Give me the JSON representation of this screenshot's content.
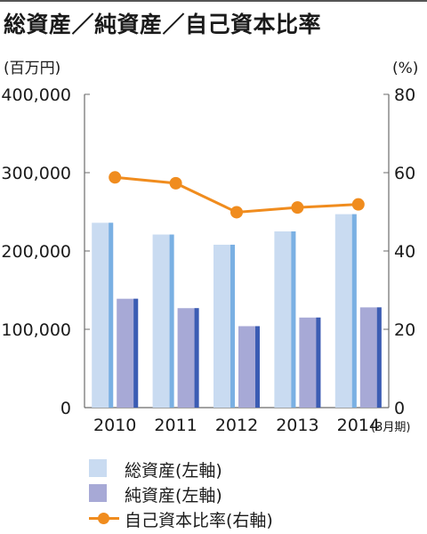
{
  "title": "総資産／純資産／自己資本比率",
  "chart_data": {
    "type": "bar",
    "categories": [
      "2010",
      "2011",
      "2012",
      "2013",
      "2014"
    ],
    "x_unit_note": "(3月期)",
    "left_axis": {
      "unit": "(百万円)",
      "ylim": [
        0,
        400000
      ],
      "ticks": [
        "0",
        "100,000",
        "200,000",
        "300,000",
        "400,000"
      ]
    },
    "right_axis": {
      "unit": "(%)",
      "ylim": [
        0,
        80
      ],
      "ticks": [
        "0",
        "20",
        "40",
        "60",
        "80"
      ]
    },
    "series": [
      {
        "name": "総資産(左軸)",
        "type": "bar",
        "axis": "left",
        "color": "#c9dbf1",
        "shade": "#7ab0e3",
        "values": [
          236000,
          221000,
          208000,
          225000,
          247000
        ]
      },
      {
        "name": "純資産(左軸)",
        "type": "bar",
        "axis": "left",
        "color": "#a7a9d6",
        "shade": "#3b5cb3",
        "values": [
          139000,
          127000,
          104000,
          115000,
          128000
        ]
      },
      {
        "name": "自己資本比率(右軸)",
        "type": "line",
        "axis": "right",
        "color": "#f08c1e",
        "values": [
          58.8,
          57.3,
          49.9,
          51.1,
          51.9
        ]
      }
    ],
    "grid": false,
    "legend_position": "bottom"
  }
}
